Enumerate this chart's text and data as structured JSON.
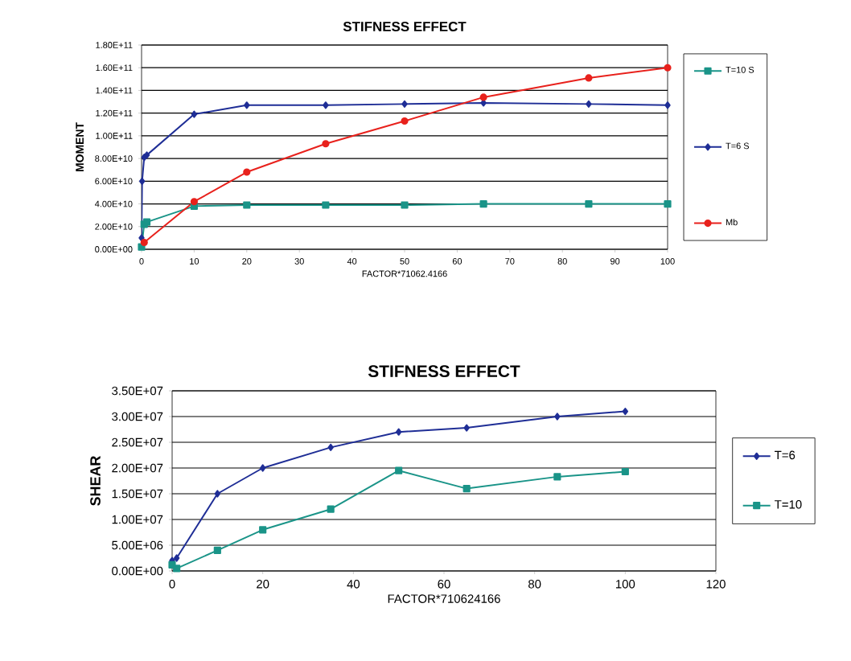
{
  "chart_data": [
    {
      "type": "line",
      "title": "STIFNESS EFFECT",
      "xlabel": "FACTOR*71062.4166",
      "ylabel": "MOMENT",
      "xlim": [
        0,
        100
      ],
      "xticks": [
        0,
        10,
        20,
        30,
        40,
        50,
        60,
        70,
        80,
        90,
        100
      ],
      "ylim": [
        0,
        180000000000
      ],
      "yticks": [
        {
          "value": 0,
          "label": "0.00E+00"
        },
        {
          "value": 20000000000,
          "label": "2.00E+10"
        },
        {
          "value": 40000000000,
          "label": "4.00E+10"
        },
        {
          "value": 60000000000,
          "label": "6.00E+10"
        },
        {
          "value": 80000000000,
          "label": "8.00E+10"
        },
        {
          "value": 100000000000,
          "label": "1.00E+11"
        },
        {
          "value": 120000000000,
          "label": "1.20E+11"
        },
        {
          "value": 140000000000,
          "label": "1.40E+11"
        },
        {
          "value": 160000000000,
          "label": "1.60E+11"
        },
        {
          "value": 180000000000,
          "label": "1.80E+11"
        }
      ],
      "grid": "y",
      "legend": "right",
      "series": [
        {
          "name": "T=10 S",
          "color": "#1a9488",
          "marker": "square",
          "x": [
            0,
            0.5,
            1,
            10,
            20,
            35,
            50,
            65,
            85,
            100
          ],
          "values": [
            2000000000,
            22000000000,
            24000000000,
            38000000000,
            39000000000,
            39000000000,
            39000000000,
            40000000000,
            40000000000,
            40000000000
          ]
        },
        {
          "name": "T=6 S",
          "color": "#1f2e96",
          "marker": "diamond",
          "x": [
            0,
            0.1,
            0.5,
            1,
            10,
            20,
            35,
            50,
            65,
            85,
            100
          ],
          "values": [
            10000000000,
            60000000000,
            81000000000,
            83000000000,
            119000000000,
            127000000000,
            127000000000,
            128000000000,
            129000000000,
            128000000000,
            127000000000
          ]
        },
        {
          "name": "Mb",
          "color": "#e8211c",
          "marker": "circle",
          "x": [
            0.5,
            10,
            20,
            35,
            50,
            65,
            85,
            100
          ],
          "values": [
            6000000000,
            42000000000,
            68000000000,
            93000000000,
            113000000000,
            134000000000,
            151000000000,
            160000000000
          ]
        }
      ]
    },
    {
      "type": "line",
      "title": "STIFNESS EFFECT",
      "xlabel": "FACTOR*710624166",
      "ylabel": "SHEAR",
      "xlim": [
        0,
        120
      ],
      "xticks": [
        0,
        20,
        40,
        60,
        80,
        100,
        120
      ],
      "ylim": [
        0,
        35000000
      ],
      "yticks": [
        {
          "value": 0,
          "label": "0.00E+00"
        },
        {
          "value": 5000000,
          "label": "5.00E+06"
        },
        {
          "value": 10000000,
          "label": "1.00E+07"
        },
        {
          "value": 15000000,
          "label": "1.50E+07"
        },
        {
          "value": 20000000,
          "label": "2.00E+07"
        },
        {
          "value": 25000000,
          "label": "2.50E+07"
        },
        {
          "value": 30000000,
          "label": "3.00E+07"
        },
        {
          "value": 35000000,
          "label": "3.50E+07"
        }
      ],
      "grid": "y",
      "legend": "right",
      "series": [
        {
          "name": "T=6",
          "color": "#1f2e96",
          "marker": "diamond",
          "x": [
            0,
            1,
            10,
            20,
            35,
            50,
            65,
            85,
            100
          ],
          "values": [
            2000000,
            2500000,
            15000000,
            20000000,
            24000000,
            27000000,
            27800000,
            30000000,
            31000000
          ]
        },
        {
          "name": "T=10",
          "color": "#1a9488",
          "marker": "square",
          "x": [
            0,
            1,
            10,
            20,
            35,
            50,
            65,
            85,
            100
          ],
          "values": [
            1200000,
            500000,
            4000000,
            8000000,
            12000000,
            19500000,
            16000000,
            18300000,
            19300000
          ]
        }
      ]
    }
  ]
}
